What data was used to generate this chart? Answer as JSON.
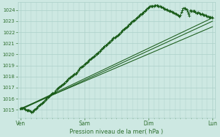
{
  "xlabel": "Pression niveau de la mer( hPa )",
  "ylim": [
    1014.3,
    1024.7
  ],
  "yticks": [
    1015,
    1016,
    1017,
    1018,
    1019,
    1020,
    1021,
    1022,
    1023,
    1024
  ],
  "day_labels": [
    "Ven",
    "Sam",
    "Dim",
    "Lun"
  ],
  "day_positions": [
    0,
    72,
    144,
    216
  ],
  "xlim": [
    -3,
    219
  ],
  "background_color": "#cde8e2",
  "grid_color": "#aacfc8",
  "line_color": "#1a5c1a",
  "marker_color": "#1a5c1a",
  "label_color": "#2d6e2d",
  "n_points": 217,
  "trend_lines": [
    [
      1015.0,
      1023.0,
      1023.0
    ],
    [
      1015.0,
      1022.3,
      1023.3
    ],
    [
      1015.0,
      1022.7,
      1023.1
    ]
  ]
}
